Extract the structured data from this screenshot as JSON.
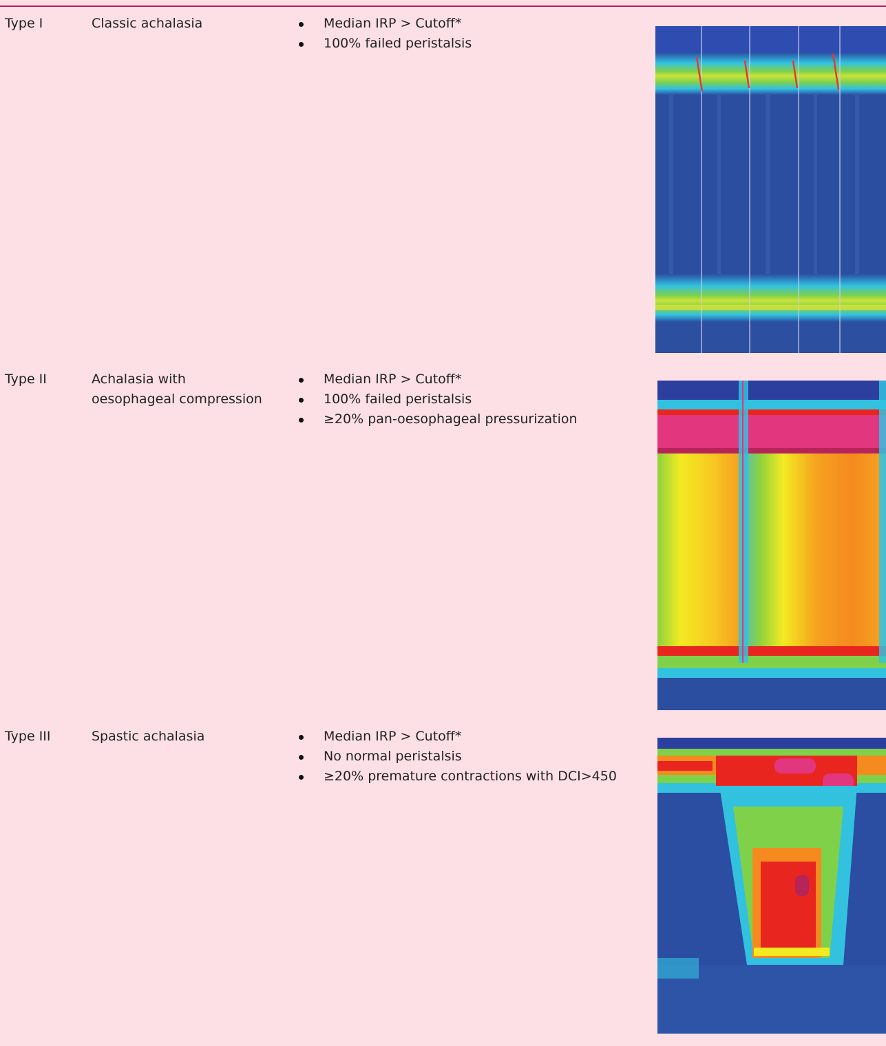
{
  "rows": [
    {
      "type": "Type I",
      "name_lines": [
        "Classic achalasia"
      ],
      "criteria": [
        "Median IRP > Cutoff*",
        "100% failed peristalsis"
      ]
    },
    {
      "type": "Type II",
      "name_lines": [
        "Achalasia with",
        "oesophageal compression"
      ],
      "criteria": [
        "Median IRP > Cutoff*",
        "100% failed peristalsis",
        "≥20% pan-oesophageal pressurization"
      ]
    },
    {
      "type": "Type III",
      "name_lines": [
        "Spastic achalasia"
      ],
      "criteria": [
        "Median IRP > Cutoff*",
        "No normal peristalsis",
        "≥20% premature contractions with DCI>450"
      ]
    }
  ],
  "colors": {
    "background": "#fde0e6",
    "rule": "#c2185b",
    "plot_blue": "#2a4fa3",
    "plot_cyan": "#32c2e0",
    "plot_green": "#7fd14a",
    "plot_yellow": "#f3ea22",
    "plot_orange": "#f58a1f",
    "plot_red": "#e8261f",
    "plot_magenta": "#e2367e"
  },
  "plots": [
    {
      "icon": "esophageal-pressure-topography-type-1"
    },
    {
      "icon": "esophageal-pressure-topography-type-2"
    },
    {
      "icon": "esophageal-pressure-topography-type-3"
    }
  ]
}
